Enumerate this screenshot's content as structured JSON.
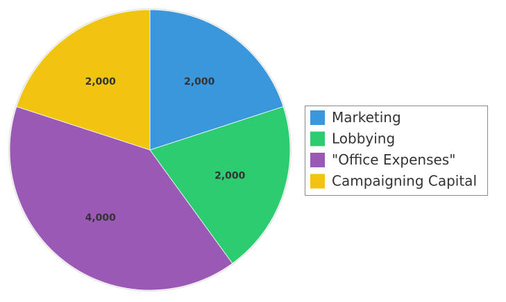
{
  "chart_data": {
    "type": "pie",
    "categories": [
      "Marketing",
      "Lobbying",
      "\"Office Expenses\"",
      "Campaigning Capital"
    ],
    "values": [
      2000,
      2000,
      4000,
      2000
    ],
    "data_labels": [
      "2,000",
      "2,000",
      "4,000",
      "2,000"
    ],
    "colors": [
      "#3b97dc",
      "#2ecc71",
      "#9b59b6",
      "#f1c40f"
    ],
    "legend_placement": "right",
    "start_angle": "top",
    "direction": "clockwise"
  }
}
